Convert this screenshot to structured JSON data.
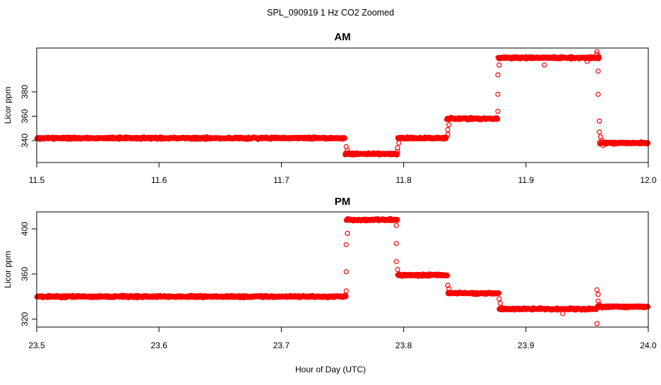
{
  "figure": {
    "title": "SPL_090919 1 Hz CO2 Zoomed",
    "xlabel": "Hour of Day (UTC)"
  },
  "chart_data": [
    {
      "type": "scatter",
      "title": "AM",
      "xlabel": "Hour of Day (UTC)",
      "ylabel": "Licor ppm",
      "xlim": [
        11.5,
        12.0
      ],
      "ylim": [
        322,
        416
      ],
      "xticks": [
        11.5,
        11.6,
        11.7,
        11.8,
        11.9,
        12.0
      ],
      "xtick_labels": [
        "11.5",
        "11.6",
        "11.7",
        "11.8",
        "11.9",
        "12.0"
      ],
      "yticks": [
        340,
        360,
        380
      ],
      "ytick_labels": [
        "340",
        "360",
        "380"
      ],
      "grid": false,
      "marker_color": "#ff0000",
      "noise": 1.2,
      "segments": [
        {
          "x0": 11.5,
          "x1": 11.752,
          "y": 342
        },
        {
          "x0": 11.752,
          "x1": 11.795,
          "y": 329
        },
        {
          "x0": 11.795,
          "x1": 11.835,
          "y": 342
        },
        {
          "x0": 11.835,
          "x1": 11.877,
          "y": 358
        },
        {
          "x0": 11.877,
          "x1": 11.96,
          "y": 408
        },
        {
          "x0": 11.96,
          "x1": 12.0,
          "y": 338
        }
      ],
      "transition_points": [
        [
          11.753,
          335
        ],
        [
          11.754,
          332
        ],
        [
          11.795,
          331
        ],
        [
          11.795,
          334
        ],
        [
          11.796,
          338
        ],
        [
          11.836,
          345
        ],
        [
          11.836,
          349
        ],
        [
          11.837,
          353
        ],
        [
          11.877,
          364
        ],
        [
          11.877,
          378
        ],
        [
          11.877,
          394
        ],
        [
          11.878,
          402
        ],
        [
          11.915,
          402
        ],
        [
          11.95,
          405
        ],
        [
          11.958,
          413
        ],
        [
          11.958,
          411
        ],
        [
          11.959,
          397
        ],
        [
          11.959,
          378
        ],
        [
          11.96,
          356
        ],
        [
          11.96,
          347
        ],
        [
          11.961,
          343
        ],
        [
          11.962,
          340
        ],
        [
          11.963,
          336
        ]
      ]
    },
    {
      "type": "scatter",
      "title": "PM",
      "xlabel": "Hour of Day (UTC)",
      "ylabel": "Licor ppm",
      "xlim": [
        23.5,
        24.0
      ],
      "ylim": [
        313,
        415
      ],
      "xticks": [
        23.5,
        23.6,
        23.7,
        23.8,
        23.9,
        24.0
      ],
      "xtick_labels": [
        "23.5",
        "23.6",
        "23.7",
        "23.8",
        "23.9",
        "24.0"
      ],
      "yticks": [
        320,
        360,
        400
      ],
      "ytick_labels": [
        "320",
        "360",
        "400"
      ],
      "grid": false,
      "marker_color": "#ff0000",
      "noise": 1.3,
      "segments": [
        {
          "x0": 23.5,
          "x1": 23.753,
          "y": 340
        },
        {
          "x0": 23.753,
          "x1": 23.795,
          "y": 408
        },
        {
          "x0": 23.795,
          "x1": 23.836,
          "y": 359
        },
        {
          "x0": 23.836,
          "x1": 23.878,
          "y": 343
        },
        {
          "x0": 23.878,
          "x1": 23.958,
          "y": 329
        },
        {
          "x0": 23.958,
          "x1": 24.0,
          "y": 331
        }
      ],
      "transition_points": [
        [
          23.753,
          345
        ],
        [
          23.753,
          362
        ],
        [
          23.753,
          386
        ],
        [
          23.754,
          396
        ],
        [
          23.794,
          403
        ],
        [
          23.794,
          387
        ],
        [
          23.794,
          371
        ],
        [
          23.795,
          364
        ],
        [
          23.836,
          350
        ],
        [
          23.837,
          347
        ],
        [
          23.878,
          338
        ],
        [
          23.879,
          334
        ],
        [
          23.93,
          325
        ],
        [
          23.958,
          316
        ],
        [
          23.958,
          346
        ],
        [
          23.959,
          342
        ],
        [
          23.959,
          336
        ],
        [
          23.96,
          333
        ]
      ]
    }
  ]
}
